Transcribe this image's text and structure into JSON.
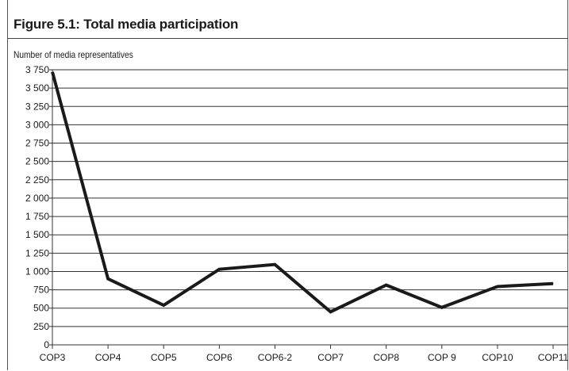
{
  "chart_data": {
    "type": "line",
    "title": "Figure 5.1: Total media participation",
    "ylabel": "Number of media representatives",
    "xlabel": "",
    "categories": [
      "COP3",
      "COP4",
      "COP5",
      "COP6",
      "COP6-2",
      "COP7",
      "COP8",
      "COP 9",
      "COP10",
      "COP11"
    ],
    "series": [
      {
        "values": [
          3720,
          900,
          540,
          1030,
          1095,
          450,
          815,
          510,
          795,
          835
        ]
      }
    ],
    "ylim": [
      0,
      3750
    ],
    "yticks": [
      0,
      250,
      500,
      750,
      1000,
      1250,
      1500,
      1750,
      2000,
      2250,
      2500,
      2750,
      3000,
      3250,
      3500,
      3750
    ],
    "ytick_labels": [
      "0",
      "250",
      "500",
      "750",
      "1 000",
      "1 250",
      "1 500",
      "1 750",
      "2 000",
      "2 250",
      "2 500",
      "2 750",
      "3 000",
      "3 250",
      "3 500",
      "3 750"
    ],
    "grid": true,
    "line_color": "#1a1a1a",
    "grid_color": "#333333"
  }
}
